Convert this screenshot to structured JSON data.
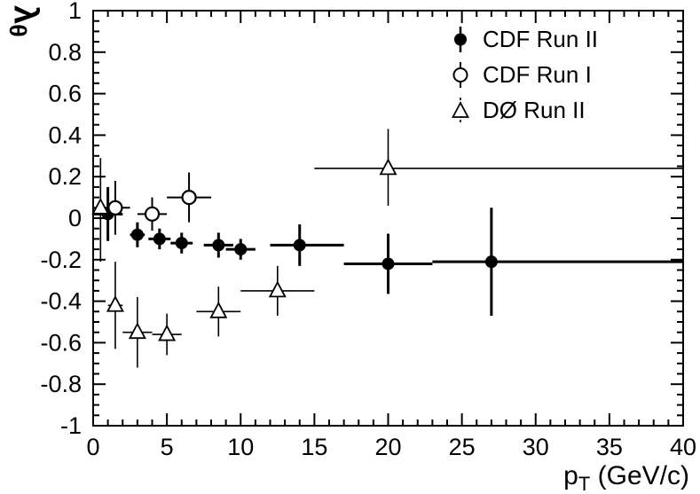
{
  "chart_data": {
    "type": "scatter",
    "title": "",
    "xlabel": "p_T (GeV/c)",
    "ylabel": "lambda_theta",
    "xlabel_main": "p",
    "xlabel_sub": "T",
    "xlabel_rest": " (GeV/c)",
    "ylabel_main": "λ",
    "ylabel_sub": "θ",
    "xlim": [
      0,
      40
    ],
    "ylim": [
      -1,
      1
    ],
    "x_ticks": [
      0,
      5,
      10,
      15,
      20,
      25,
      30,
      35,
      40
    ],
    "x_tick_labels": [
      "0",
      "5",
      "10",
      "15",
      "20",
      "25",
      "30",
      "35",
      "40"
    ],
    "x_minor_step": 1,
    "y_ticks": [
      1,
      0.8,
      0.6,
      0.4,
      0.2,
      0,
      -0.2,
      -0.4,
      -0.6,
      -0.8,
      -1
    ],
    "y_tick_labels": [
      "1",
      "0.8",
      "0.6",
      "0.4",
      "0.2",
      "0",
      "-0.2",
      "-0.4",
      "-0.6",
      "-0.8",
      "-1"
    ],
    "y_minor_step": 0.05,
    "grid": false,
    "frame": true,
    "legend_position": "top-right",
    "axis_color": "#000000",
    "background_color": "#ffffff",
    "series": [
      {
        "name": "CDF Run II",
        "marker": "filled-circle",
        "color": "#000000",
        "line_width": 3,
        "points": [
          {
            "x": 1,
            "y": 0.02,
            "xerr_lo": 1,
            "xerr_hi": 1,
            "yerr_lo": 0.13,
            "yerr_hi": 0.13
          },
          {
            "x": 3,
            "y": -0.08,
            "xerr_lo": 0.5,
            "xerr_hi": 0.5,
            "yerr_lo": 0.06,
            "yerr_hi": 0.06
          },
          {
            "x": 4.5,
            "y": -0.1,
            "xerr_lo": 0.75,
            "xerr_hi": 0.75,
            "yerr_lo": 0.05,
            "yerr_hi": 0.05
          },
          {
            "x": 6,
            "y": -0.12,
            "xerr_lo": 0.75,
            "xerr_hi": 0.75,
            "yerr_lo": 0.05,
            "yerr_hi": 0.05
          },
          {
            "x": 8.5,
            "y": -0.13,
            "xerr_lo": 1,
            "xerr_hi": 1,
            "yerr_lo": 0.06,
            "yerr_hi": 0.06
          },
          {
            "x": 10,
            "y": -0.15,
            "xerr_lo": 1,
            "xerr_hi": 1,
            "yerr_lo": 0.05,
            "yerr_hi": 0.05
          },
          {
            "x": 14,
            "y": -0.13,
            "xerr_lo": 2,
            "xerr_hi": 3,
            "yerr_lo": 0.1,
            "yerr_hi": 0.1
          },
          {
            "x": 20,
            "y": -0.22,
            "xerr_lo": 3,
            "xerr_hi": 3,
            "yerr_lo": 0.145,
            "yerr_hi": 0.145
          },
          {
            "x": 27,
            "y": -0.21,
            "xerr_lo": 4,
            "xerr_hi": 13,
            "yerr_lo": 0.26,
            "yerr_hi": 0.26
          }
        ]
      },
      {
        "name": "CDF Run I",
        "marker": "open-circle",
        "color": "#000000",
        "line_width": 2,
        "points": [
          {
            "x": 1.5,
            "y": 0.05,
            "xerr_lo": 1,
            "xerr_hi": 1,
            "yerr_lo": 0.13,
            "yerr_hi": 0.13
          },
          {
            "x": 4,
            "y": 0.02,
            "xerr_lo": 1,
            "xerr_hi": 1,
            "yerr_lo": 0.08,
            "yerr_hi": 0.08
          },
          {
            "x": 6.5,
            "y": 0.1,
            "xerr_lo": 1.5,
            "xerr_hi": 1.5,
            "yerr_lo": 0.12,
            "yerr_hi": 0.12
          }
        ]
      },
      {
        "name": "DØ Run II",
        "marker": "open-triangle",
        "color": "#000000",
        "line_width": 1.6,
        "points": [
          {
            "x": 0.5,
            "y": 0.05,
            "xerr_lo": 0.5,
            "xerr_hi": 0.5,
            "yerr_lo": 0.26,
            "yerr_hi": 0.24
          },
          {
            "x": 1.5,
            "y": -0.42,
            "xerr_lo": 0.5,
            "xerr_hi": 0.5,
            "yerr_lo": 0.21,
            "yerr_hi": 0.21
          },
          {
            "x": 3,
            "y": -0.55,
            "xerr_lo": 1,
            "xerr_hi": 1,
            "yerr_lo": 0.17,
            "yerr_hi": 0.17
          },
          {
            "x": 5,
            "y": -0.56,
            "xerr_lo": 1,
            "xerr_hi": 1,
            "yerr_lo": 0.1,
            "yerr_hi": 0.1
          },
          {
            "x": 8.5,
            "y": -0.45,
            "xerr_lo": 1.5,
            "xerr_hi": 1.5,
            "yerr_lo": 0.12,
            "yerr_hi": 0.12
          },
          {
            "x": 12.5,
            "y": -0.35,
            "xerr_lo": 2.5,
            "xerr_hi": 2.5,
            "yerr_lo": 0.12,
            "yerr_hi": 0.12
          },
          {
            "x": 20,
            "y": 0.24,
            "xerr_lo": 5,
            "xerr_hi": 20,
            "yerr_lo": 0.18,
            "yerr_hi": 0.19
          }
        ]
      }
    ]
  }
}
